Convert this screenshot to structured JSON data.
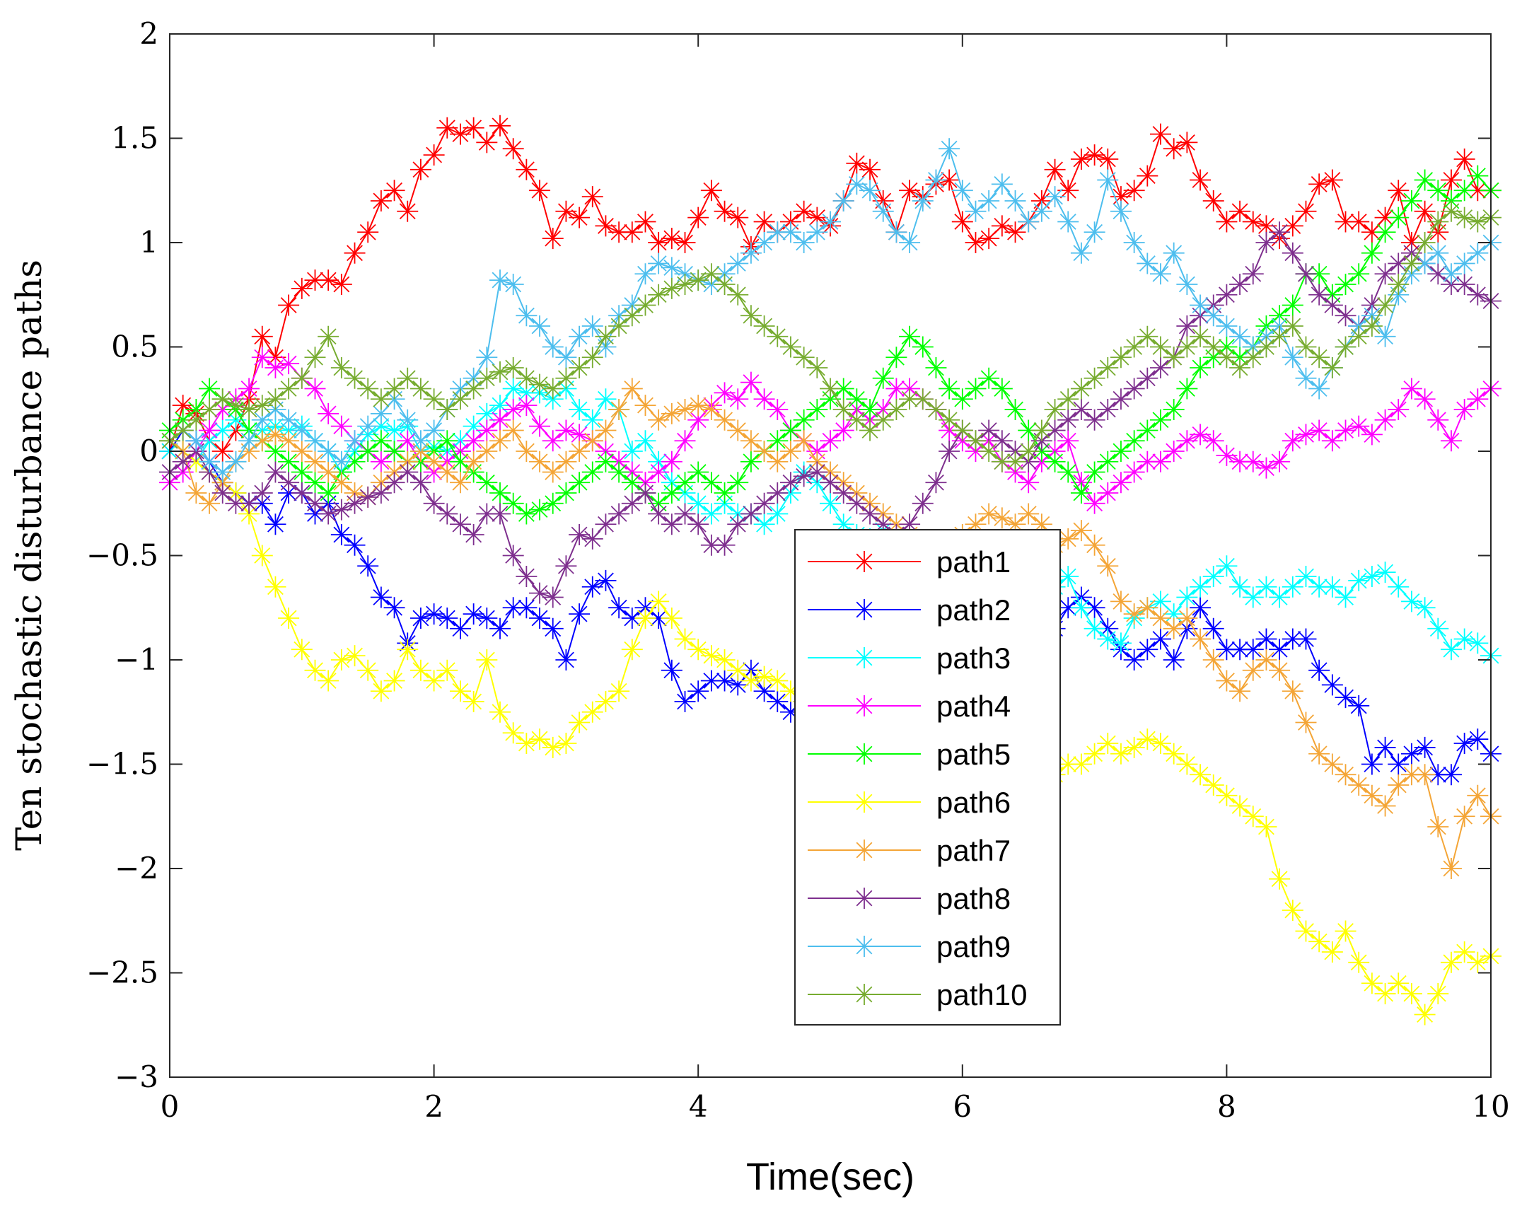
{
  "chart_data": {
    "type": "line",
    "title": "",
    "xlabel": "Time(sec)",
    "ylabel": "Ten stochastic disturbance paths",
    "xlim": [
      0,
      10
    ],
    "ylim": [
      -3,
      2
    ],
    "xticks": [
      0,
      2,
      4,
      6,
      8,
      10
    ],
    "xtick_labels": [
      "0",
      "2",
      "4",
      "6",
      "8",
      "10"
    ],
    "yticks": [
      -3,
      -2.5,
      -2,
      -1.5,
      -1,
      -0.5,
      0,
      0.5,
      1,
      1.5,
      2
    ],
    "ytick_labels": [
      "−3",
      "−2.5",
      "−2",
      "−1.5",
      "−1",
      "−0.5",
      "0",
      "0.5",
      "1",
      "1.5",
      "2"
    ],
    "grid": false,
    "legend_position": "center",
    "marker": "asterisk",
    "x": [
      0,
      0.1,
      0.2,
      0.3,
      0.4,
      0.5,
      0.6,
      0.7,
      0.8,
      0.9,
      1.0,
      1.1,
      1.2,
      1.3,
      1.4,
      1.5,
      1.6,
      1.7,
      1.8,
      1.9,
      2.0,
      2.1,
      2.2,
      2.3,
      2.4,
      2.5,
      2.6,
      2.7,
      2.8,
      2.9,
      3.0,
      3.1,
      3.2,
      3.3,
      3.4,
      3.5,
      3.6,
      3.7,
      3.8,
      3.9,
      4.0,
      4.1,
      4.2,
      4.3,
      4.4,
      4.5,
      4.6,
      4.7,
      4.8,
      4.9,
      5.0,
      5.1,
      5.2,
      5.3,
      5.4,
      5.5,
      5.6,
      5.7,
      5.8,
      5.9,
      6.0,
      6.1,
      6.2,
      6.3,
      6.4,
      6.5,
      6.6,
      6.7,
      6.8,
      6.9,
      7.0,
      7.1,
      7.2,
      7.3,
      7.4,
      7.5,
      7.6,
      7.7,
      7.8,
      7.9,
      8.0,
      8.1,
      8.2,
      8.3,
      8.4,
      8.5,
      8.6,
      8.7,
      8.8,
      8.9,
      9.0,
      9.1,
      9.2,
      9.3,
      9.4,
      9.5,
      9.6,
      9.7,
      9.8,
      9.9,
      10.0
    ],
    "series": [
      {
        "name": "path1",
        "color": "#ff0000",
        "values": [
          0,
          0.22,
          0.18,
          0.05,
          0.0,
          0.1,
          0.25,
          0.55,
          0.45,
          0.7,
          0.78,
          0.82,
          0.82,
          0.8,
          0.95,
          1.05,
          1.2,
          1.25,
          1.15,
          1.35,
          1.42,
          1.55,
          1.52,
          1.55,
          1.48,
          1.56,
          1.45,
          1.35,
          1.25,
          1.02,
          1.15,
          1.12,
          1.22,
          1.08,
          1.05,
          1.05,
          1.1,
          1.0,
          1.02,
          1.0,
          1.12,
          1.25,
          1.15,
          1.12,
          0.98,
          1.1,
          1.05,
          1.1,
          1.15,
          1.12,
          1.08,
          1.2,
          1.38,
          1.35,
          1.2,
          1.05,
          1.25,
          1.22,
          1.28,
          1.3,
          1.1,
          1.0,
          1.02,
          1.08,
          1.05,
          1.1,
          1.2,
          1.35,
          1.25,
          1.4,
          1.42,
          1.4,
          1.22,
          1.25,
          1.32,
          1.52,
          1.45,
          1.48,
          1.3,
          1.2,
          1.1,
          1.15,
          1.1,
          1.08,
          1.02,
          1.08,
          1.15,
          1.28,
          1.3,
          1.1,
          1.1,
          1.05,
          1.12,
          1.25,
          1.0,
          1.15,
          1.05,
          1.3,
          1.4,
          1.25,
          1.25
        ]
      },
      {
        "name": "path2",
        "color": "#0000ff",
        "values": [
          0,
          0.1,
          0.05,
          -0.05,
          -0.15,
          -0.2,
          -0.25,
          -0.25,
          -0.35,
          -0.2,
          -0.2,
          -0.3,
          -0.25,
          -0.4,
          -0.45,
          -0.55,
          -0.7,
          -0.75,
          -0.92,
          -0.8,
          -0.78,
          -0.8,
          -0.85,
          -0.78,
          -0.8,
          -0.85,
          -0.75,
          -0.75,
          -0.8,
          -0.85,
          -1.0,
          -0.78,
          -0.65,
          -0.62,
          -0.75,
          -0.8,
          -0.75,
          -0.8,
          -1.05,
          -1.2,
          -1.15,
          -1.1,
          -1.1,
          -1.12,
          -1.05,
          -1.15,
          -1.2,
          -1.25,
          -1.2,
          -1.15,
          -1.1,
          -1.15,
          -1.2,
          -1.25,
          -1.18,
          -1.2,
          -1.15,
          -1.1,
          -1.05,
          -1.0,
          -0.95,
          -0.9,
          -0.85,
          -0.8,
          -0.85,
          -0.75,
          -0.8,
          -0.85,
          -0.75,
          -0.7,
          -0.75,
          -0.85,
          -0.95,
          -1.0,
          -0.95,
          -0.9,
          -1.0,
          -0.85,
          -0.75,
          -0.85,
          -0.95,
          -0.95,
          -0.95,
          -0.9,
          -0.95,
          -0.9,
          -0.9,
          -1.05,
          -1.12,
          -1.18,
          -1.22,
          -1.5,
          -1.42,
          -1.5,
          -1.45,
          -1.42,
          -1.55,
          -1.55,
          -1.4,
          -1.38,
          -1.45
        ]
      },
      {
        "name": "path3",
        "color": "#00ffff",
        "values": [
          0,
          0.0,
          -0.05,
          0.05,
          0.1,
          0.15,
          0.1,
          0.1,
          0.12,
          0.1,
          0.12,
          0.05,
          0.0,
          -0.1,
          0.0,
          0.08,
          0.12,
          0.1,
          0.12,
          0.0,
          0.02,
          0.0,
          0.05,
          0.12,
          0.18,
          0.22,
          0.3,
          0.28,
          0.28,
          0.25,
          0.3,
          0.2,
          0.15,
          0.25,
          0.2,
          0.0,
          0.05,
          -0.05,
          -0.15,
          -0.2,
          -0.25,
          -0.3,
          -0.25,
          -0.3,
          -0.3,
          -0.35,
          -0.3,
          -0.2,
          -0.1,
          -0.15,
          -0.25,
          -0.35,
          -0.4,
          -0.42,
          -0.38,
          -0.4,
          -0.45,
          -0.55,
          -0.6,
          -0.65,
          -0.68,
          -0.65,
          -0.7,
          -0.75,
          -0.7,
          -0.75,
          -0.7,
          -0.65,
          -0.6,
          -0.75,
          -0.85,
          -0.9,
          -0.92,
          -0.8,
          -0.75,
          -0.72,
          -0.78,
          -0.7,
          -0.65,
          -0.6,
          -0.55,
          -0.65,
          -0.7,
          -0.65,
          -0.7,
          -0.65,
          -0.6,
          -0.65,
          -0.65,
          -0.7,
          -0.62,
          -0.6,
          -0.58,
          -0.65,
          -0.72,
          -0.75,
          -0.85,
          -0.95,
          -0.9,
          -0.92,
          -0.98
        ]
      },
      {
        "name": "path4",
        "color": "#ff00ff",
        "values": [
          -0.15,
          -0.1,
          0.0,
          0.1,
          0.2,
          0.25,
          0.3,
          0.45,
          0.4,
          0.42,
          0.35,
          0.3,
          0.18,
          0.12,
          0.05,
          0.0,
          -0.05,
          0.0,
          0.05,
          -0.05,
          -0.1,
          -0.05,
          0.0,
          0.05,
          0.1,
          0.15,
          0.2,
          0.22,
          0.12,
          0.05,
          0.1,
          0.08,
          0.05,
          0.0,
          -0.05,
          -0.1,
          -0.15,
          -0.1,
          -0.05,
          0.05,
          0.15,
          0.22,
          0.28,
          0.25,
          0.33,
          0.25,
          0.2,
          0.1,
          0.05,
          0.0,
          0.05,
          0.1,
          0.2,
          0.15,
          0.2,
          0.3,
          0.3,
          0.25,
          0.2,
          0.1,
          0.05,
          0.0,
          0.05,
          -0.05,
          -0.1,
          -0.15,
          -0.05,
          0.0,
          0.05,
          -0.15,
          -0.25,
          -0.2,
          -0.15,
          -0.1,
          -0.05,
          -0.05,
          0.0,
          0.05,
          0.08,
          0.05,
          -0.02,
          -0.05,
          -0.05,
          -0.08,
          -0.05,
          0.05,
          0.08,
          0.1,
          0.05,
          0.1,
          0.12,
          0.08,
          0.15,
          0.2,
          0.3,
          0.25,
          0.15,
          0.05,
          0.2,
          0.25,
          0.3
        ]
      },
      {
        "name": "path5",
        "color": "#00ff00",
        "values": [
          0.1,
          0.15,
          0.2,
          0.3,
          0.25,
          0.2,
          0.1,
          0.05,
          0.0,
          -0.05,
          -0.1,
          -0.15,
          -0.2,
          -0.1,
          -0.05,
          0.0,
          0.05,
          0.0,
          -0.05,
          -0.05,
          0.0,
          0.05,
          -0.05,
          -0.1,
          -0.15,
          -0.2,
          -0.25,
          -0.3,
          -0.28,
          -0.25,
          -0.2,
          -0.15,
          -0.1,
          -0.05,
          -0.1,
          -0.15,
          -0.2,
          -0.25,
          -0.2,
          -0.15,
          -0.1,
          -0.15,
          -0.2,
          -0.15,
          -0.05,
          0.0,
          0.05,
          0.1,
          0.15,
          0.2,
          0.25,
          0.3,
          0.25,
          0.2,
          0.35,
          0.45,
          0.55,
          0.5,
          0.4,
          0.3,
          0.25,
          0.3,
          0.35,
          0.3,
          0.2,
          0.1,
          0.0,
          -0.05,
          -0.1,
          -0.2,
          -0.1,
          -0.05,
          0.0,
          0.05,
          0.1,
          0.15,
          0.2,
          0.3,
          0.4,
          0.45,
          0.5,
          0.45,
          0.5,
          0.6,
          0.65,
          0.7,
          0.85,
          0.85,
          0.75,
          0.8,
          0.85,
          0.95,
          1.05,
          1.12,
          1.2,
          1.3,
          1.25,
          1.2,
          1.25,
          1.32,
          1.25
        ]
      },
      {
        "name": "path6",
        "color": "#ffff00",
        "values": [
          0.05,
          0.0,
          -0.05,
          -0.1,
          -0.15,
          -0.2,
          -0.3,
          -0.5,
          -0.65,
          -0.8,
          -0.95,
          -1.05,
          -1.1,
          -1.0,
          -0.98,
          -1.05,
          -1.15,
          -1.1,
          -0.95,
          -1.05,
          -1.1,
          -1.05,
          -1.15,
          -1.2,
          -1.0,
          -1.25,
          -1.35,
          -1.4,
          -1.38,
          -1.42,
          -1.4,
          -1.3,
          -1.25,
          -1.2,
          -1.15,
          -0.95,
          -0.8,
          -0.72,
          -0.8,
          -0.9,
          -0.95,
          -0.98,
          -1.0,
          -1.05,
          -1.1,
          -1.08,
          -1.1,
          -1.15,
          -1.2,
          -1.25,
          -1.3,
          -1.35,
          -1.4,
          -1.45,
          -1.5,
          -1.52,
          -1.55,
          -1.6,
          -1.62,
          -1.65,
          -1.6,
          -1.58,
          -1.55,
          -1.58,
          -1.6,
          -1.58,
          -1.55,
          -1.55,
          -1.5,
          -1.5,
          -1.45,
          -1.4,
          -1.45,
          -1.42,
          -1.38,
          -1.4,
          -1.45,
          -1.5,
          -1.55,
          -1.6,
          -1.65,
          -1.7,
          -1.75,
          -1.8,
          -2.05,
          -2.2,
          -2.3,
          -2.35,
          -2.4,
          -2.3,
          -2.45,
          -2.55,
          -2.6,
          -2.55,
          -2.6,
          -2.7,
          -2.6,
          -2.45,
          -2.4,
          -2.45,
          -2.42
        ]
      },
      {
        "name": "path7",
        "color": "#f4a536",
        "values": [
          0.05,
          0.0,
          -0.2,
          -0.25,
          -0.15,
          -0.05,
          0.0,
          0.05,
          0.08,
          0.05,
          0.0,
          -0.05,
          -0.1,
          -0.15,
          -0.2,
          -0.22,
          -0.15,
          -0.1,
          -0.05,
          0.0,
          -0.05,
          -0.1,
          -0.15,
          -0.05,
          0.0,
          0.05,
          0.1,
          0.0,
          -0.05,
          -0.1,
          -0.05,
          0.0,
          0.05,
          0.1,
          0.2,
          0.3,
          0.22,
          0.15,
          0.18,
          0.2,
          0.22,
          0.2,
          0.15,
          0.1,
          0.05,
          0.0,
          -0.05,
          0.0,
          0.05,
          -0.05,
          -0.1,
          -0.15,
          -0.2,
          -0.25,
          -0.3,
          -0.35,
          -0.4,
          -0.45,
          -0.5,
          -0.45,
          -0.4,
          -0.35,
          -0.3,
          -0.32,
          -0.35,
          -0.3,
          -0.35,
          -0.45,
          -0.42,
          -0.38,
          -0.45,
          -0.55,
          -0.72,
          -0.78,
          -0.75,
          -0.8,
          -0.85,
          -0.8,
          -0.9,
          -1.0,
          -1.1,
          -1.15,
          -1.05,
          -1.0,
          -1.05,
          -1.15,
          -1.3,
          -1.45,
          -1.5,
          -1.55,
          -1.6,
          -1.65,
          -1.7,
          -1.6,
          -1.55,
          -1.55,
          -1.8,
          -2.0,
          -1.75,
          -1.65,
          -1.75
        ]
      },
      {
        "name": "path8",
        "color": "#7e2f8e",
        "values": [
          -0.1,
          -0.05,
          0.0,
          -0.1,
          -0.2,
          -0.25,
          -0.25,
          -0.2,
          -0.1,
          -0.15,
          -0.2,
          -0.25,
          -0.3,
          -0.28,
          -0.25,
          -0.22,
          -0.2,
          -0.15,
          -0.1,
          -0.15,
          -0.25,
          -0.3,
          -0.35,
          -0.4,
          -0.3,
          -0.3,
          -0.5,
          -0.6,
          -0.68,
          -0.7,
          -0.55,
          -0.4,
          -0.42,
          -0.35,
          -0.3,
          -0.25,
          -0.2,
          -0.3,
          -0.35,
          -0.3,
          -0.35,
          -0.45,
          -0.45,
          -0.35,
          -0.3,
          -0.25,
          -0.2,
          -0.15,
          -0.12,
          -0.1,
          -0.15,
          -0.2,
          -0.25,
          -0.3,
          -0.35,
          -0.4,
          -0.35,
          -0.25,
          -0.15,
          0.0,
          0.1,
          0.05,
          0.1,
          0.05,
          0.0,
          -0.05,
          0.05,
          0.1,
          0.15,
          0.2,
          0.15,
          0.2,
          0.25,
          0.3,
          0.35,
          0.4,
          0.45,
          0.6,
          0.65,
          0.7,
          0.75,
          0.8,
          0.85,
          1.0,
          1.05,
          0.95,
          0.85,
          0.75,
          0.7,
          0.65,
          0.6,
          0.7,
          0.85,
          0.9,
          0.95,
          0.9,
          0.85,
          0.8,
          0.8,
          0.75,
          0.72
        ]
      },
      {
        "name": "path9",
        "color": "#4dbeee",
        "values": [
          0.05,
          0.1,
          0.05,
          -0.05,
          -0.1,
          -0.05,
          0.05,
          0.15,
          0.2,
          0.15,
          0.1,
          0.05,
          0.0,
          -0.05,
          0.05,
          0.12,
          0.18,
          0.25,
          0.15,
          0.05,
          0.1,
          0.2,
          0.3,
          0.35,
          0.45,
          0.82,
          0.8,
          0.65,
          0.6,
          0.5,
          0.45,
          0.55,
          0.6,
          0.5,
          0.65,
          0.7,
          0.85,
          0.9,
          0.88,
          0.85,
          0.82,
          0.8,
          0.85,
          0.9,
          0.95,
          1.0,
          1.05,
          1.05,
          1.0,
          1.05,
          1.1,
          1.2,
          1.28,
          1.25,
          1.15,
          1.05,
          1.0,
          1.2,
          1.3,
          1.45,
          1.25,
          1.15,
          1.2,
          1.28,
          1.2,
          1.1,
          1.15,
          1.22,
          1.1,
          0.95,
          1.05,
          1.3,
          1.15,
          1.0,
          0.9,
          0.85,
          0.95,
          0.8,
          0.7,
          0.65,
          0.6,
          0.55,
          0.5,
          0.55,
          0.6,
          0.45,
          0.35,
          0.3,
          0.4,
          0.5,
          0.6,
          0.65,
          0.55,
          0.75,
          0.85,
          0.9,
          0.95,
          0.85,
          0.9,
          0.95,
          1.0
        ]
      },
      {
        "name": "path10",
        "color": "#77ac30",
        "values": [
          0.05,
          0.1,
          0.15,
          0.2,
          0.25,
          0.22,
          0.2,
          0.22,
          0.25,
          0.3,
          0.35,
          0.45,
          0.55,
          0.4,
          0.35,
          0.3,
          0.25,
          0.3,
          0.35,
          0.3,
          0.25,
          0.2,
          0.25,
          0.3,
          0.35,
          0.38,
          0.4,
          0.35,
          0.32,
          0.3,
          0.35,
          0.4,
          0.45,
          0.55,
          0.6,
          0.65,
          0.7,
          0.75,
          0.78,
          0.8,
          0.82,
          0.85,
          0.8,
          0.75,
          0.65,
          0.6,
          0.55,
          0.5,
          0.45,
          0.4,
          0.3,
          0.2,
          0.15,
          0.1,
          0.15,
          0.2,
          0.25,
          0.25,
          0.2,
          0.15,
          0.1,
          0.05,
          0.0,
          -0.05,
          -0.05,
          0.0,
          0.1,
          0.2,
          0.25,
          0.3,
          0.35,
          0.4,
          0.45,
          0.5,
          0.55,
          0.5,
          0.45,
          0.5,
          0.55,
          0.5,
          0.45,
          0.4,
          0.45,
          0.5,
          0.55,
          0.6,
          0.5,
          0.45,
          0.4,
          0.5,
          0.55,
          0.6,
          0.7,
          0.8,
          0.9,
          1.0,
          1.1,
          1.15,
          1.12,
          1.1,
          1.12
        ]
      }
    ]
  }
}
